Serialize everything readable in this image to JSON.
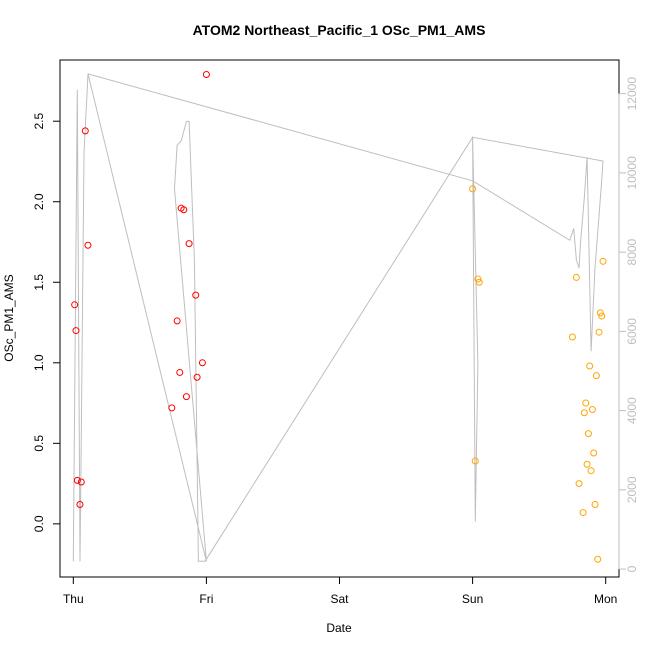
{
  "chart_data": {
    "type": "scatter",
    "title": "ATOM2 Northeast_Pacific_1 OSc_PM1_AMS",
    "xlabel": "Date",
    "ylabel": "OSc_PM1_AMS",
    "x_ticks": [
      "Thu",
      "Fri",
      "Sat",
      "Sun",
      "Mon"
    ],
    "y_ticks": [
      "0.0",
      "0.5",
      "1.0",
      "1.5",
      "2.0",
      "2.5"
    ],
    "y2_ticks": [
      "0",
      "2000",
      "4000",
      "6000",
      "8000",
      "10000",
      "12000"
    ],
    "xlim": [
      -0.1,
      4.1
    ],
    "ylim": [
      -0.33,
      2.88
    ],
    "y2lim": [
      -200,
      12850
    ],
    "series": [
      {
        "kind": "points",
        "color": "#ff0000",
        "points": [
          [
            0.01,
            1.36
          ],
          [
            0.02,
            1.2
          ],
          [
            0.03,
            0.27
          ],
          [
            0.05,
            0.12
          ],
          [
            0.06,
            0.26
          ],
          [
            0.09,
            2.44
          ],
          [
            0.11,
            1.73
          ],
          [
            0.74,
            0.72
          ],
          [
            0.78,
            1.26
          ],
          [
            0.8,
            0.94
          ],
          [
            0.81,
            1.96
          ],
          [
            0.83,
            1.95
          ],
          [
            0.85,
            0.79
          ],
          [
            0.87,
            1.74
          ],
          [
            0.92,
            1.42
          ],
          [
            0.93,
            0.91
          ],
          [
            0.97,
            1.0
          ],
          [
            1.0,
            2.79
          ]
        ]
      },
      {
        "kind": "points",
        "color": "#ffa500",
        "points": [
          [
            3.0,
            2.08
          ],
          [
            3.02,
            0.39
          ],
          [
            3.04,
            1.52
          ],
          [
            3.05,
            1.5
          ],
          [
            3.75,
            1.16
          ],
          [
            3.78,
            1.53
          ],
          [
            3.8,
            0.25
          ],
          [
            3.83,
            0.07
          ],
          [
            3.84,
            0.69
          ],
          [
            3.85,
            0.75
          ],
          [
            3.86,
            0.37
          ],
          [
            3.87,
            0.56
          ],
          [
            3.88,
            0.98
          ],
          [
            3.89,
            0.33
          ],
          [
            3.9,
            0.71
          ],
          [
            3.91,
            0.44
          ],
          [
            3.92,
            0.12
          ],
          [
            3.93,
            0.92
          ],
          [
            3.94,
            -0.22
          ],
          [
            3.95,
            1.19
          ],
          [
            3.96,
            1.31
          ],
          [
            3.97,
            1.29
          ],
          [
            3.98,
            1.63
          ]
        ]
      },
      {
        "kind": "line",
        "axis": "right",
        "color": "#bebebe",
        "points": [
          [
            0.0,
            200
          ],
          [
            0.03,
            12100
          ],
          [
            0.05,
            200
          ],
          [
            0.06,
            3400
          ],
          [
            0.08,
            10500
          ],
          [
            0.11,
            12500
          ],
          [
            1.0,
            200
          ],
          [
            0.76,
            9600
          ],
          [
            0.78,
            10700
          ],
          [
            0.81,
            10800
          ],
          [
            0.85,
            11300
          ],
          [
            0.87,
            11300
          ],
          [
            0.91,
            7800
          ],
          [
            0.94,
            200
          ],
          [
            0.99,
            200
          ],
          [
            3.0,
            10900
          ],
          [
            3.02,
            1200
          ],
          [
            3.04,
            5200
          ],
          [
            3.0,
            10900
          ],
          [
            3.98,
            10300
          ],
          [
            3.97,
            9800
          ],
          [
            3.92,
            7600
          ],
          [
            3.89,
            5500
          ],
          [
            3.86,
            10400
          ],
          [
            3.84,
            9400
          ],
          [
            3.81,
            8200
          ],
          [
            3.8,
            7600
          ],
          [
            3.78,
            7800
          ],
          [
            3.76,
            8600
          ],
          [
            3.73,
            8300
          ],
          [
            3.0,
            9800
          ],
          [
            0.11,
            12500
          ]
        ]
      }
    ]
  }
}
